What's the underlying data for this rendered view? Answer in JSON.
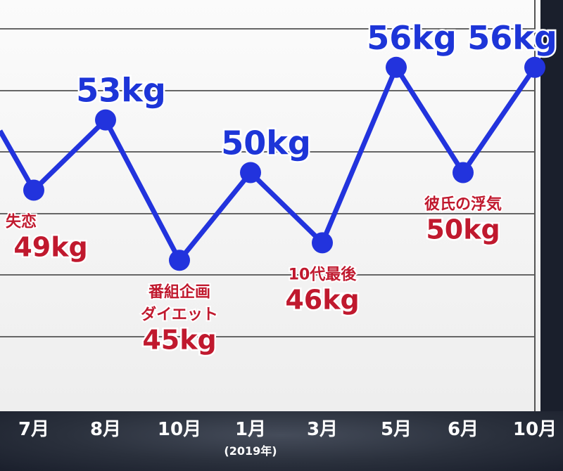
{
  "chart_data": {
    "type": "line",
    "categories": [
      "7月",
      "8月",
      "10月",
      "1月",
      "3月",
      "5月",
      "6月",
      "10月"
    ],
    "category_note": "(2019年)",
    "category_note_index": 3,
    "values": [
      49,
      53,
      45,
      50,
      46,
      56,
      50,
      56
    ],
    "value_labels": [
      "49kg",
      "53kg",
      "45kg",
      "50kg",
      "46kg",
      "56kg",
      "50kg",
      "56kg"
    ],
    "annotations": [
      "失恋",
      "",
      "番組企画\nダイエット",
      "",
      "10代最後",
      "",
      "彼氏の浮気",
      ""
    ],
    "label_position": [
      "below",
      "above",
      "below",
      "above",
      "below",
      "above",
      "below",
      "above"
    ],
    "unit": "kg",
    "ylim": [
      39,
      60
    ],
    "grid": true,
    "colors": {
      "line": "#2233dd",
      "label_above": "#1d35d8",
      "label_below": "#c0192e",
      "grid": "#666666",
      "axis_band": "#2a303c"
    }
  }
}
